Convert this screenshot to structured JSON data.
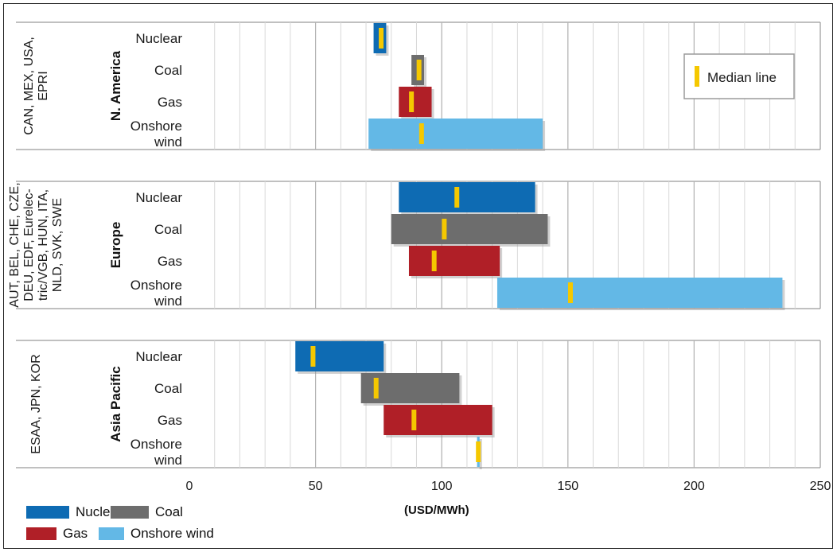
{
  "chart_data": {
    "type": "bar",
    "xlabel": "(USD/MWh)",
    "xlim": [
      0,
      250
    ],
    "xticks": [
      0,
      50,
      100,
      150,
      200,
      250
    ],
    "grid": true,
    "categories": [
      "Nuclear",
      "Coal",
      "Gas",
      "Onshore wind"
    ],
    "category_display": [
      [
        "Nuclear"
      ],
      [
        "Coal"
      ],
      [
        "Gas"
      ],
      [
        "Onshore",
        "wind"
      ]
    ],
    "regions": [
      {
        "name": "N. America",
        "countries": [
          "CAN, MEX, USA,",
          "EPRI"
        ],
        "ranges": [
          {
            "technology": "Nuclear",
            "min": 73,
            "max": 78,
            "median": 76
          },
          {
            "technology": "Coal",
            "min": 88,
            "max": 93,
            "median": 91
          },
          {
            "technology": "Gas",
            "min": 83,
            "max": 96,
            "median": 88
          },
          {
            "technology": "Onshore wind",
            "min": 71,
            "max": 140,
            "median": 92
          }
        ]
      },
      {
        "name": "Europe",
        "countries": [
          "AUT, BEL, CHE, CZE,",
          "DEU, EDF, Eurelec-",
          "tric/VGB, HUN, ITA,",
          "NLD, SVK, SWE"
        ],
        "ranges": [
          {
            "technology": "Nuclear",
            "min": 83,
            "max": 137,
            "median": 106
          },
          {
            "technology": "Coal",
            "min": 80,
            "max": 142,
            "median": 101
          },
          {
            "technology": "Gas",
            "min": 87,
            "max": 123,
            "median": 97
          },
          {
            "technology": "Onshore wind",
            "min": 122,
            "max": 235,
            "median": 151
          }
        ]
      },
      {
        "name": "Asia Pacific",
        "countries": [
          "ESAA, JPN, KOR"
        ],
        "ranges": [
          {
            "technology": "Nuclear",
            "min": 42,
            "max": 77,
            "median": 49
          },
          {
            "technology": "Coal",
            "min": 68,
            "max": 107,
            "median": 74
          },
          {
            "technology": "Gas",
            "min": 77,
            "max": 120,
            "median": 89
          },
          {
            "technology": "Onshore wind",
            "min": 114,
            "max": 115,
            "median": 114.5
          }
        ]
      }
    ],
    "legend": [
      {
        "name": "Nuclear",
        "color": "#0e6bb3"
      },
      {
        "name": "Coal",
        "color": "#6d6d6d"
      },
      {
        "name": "Gas",
        "color": "#b01f27"
      },
      {
        "name": "Onshore wind",
        "color": "#63b8e6"
      }
    ],
    "legend_placement": "bottom-left",
    "median_legend_label": "Median line",
    "median_color": "#f5c800"
  }
}
